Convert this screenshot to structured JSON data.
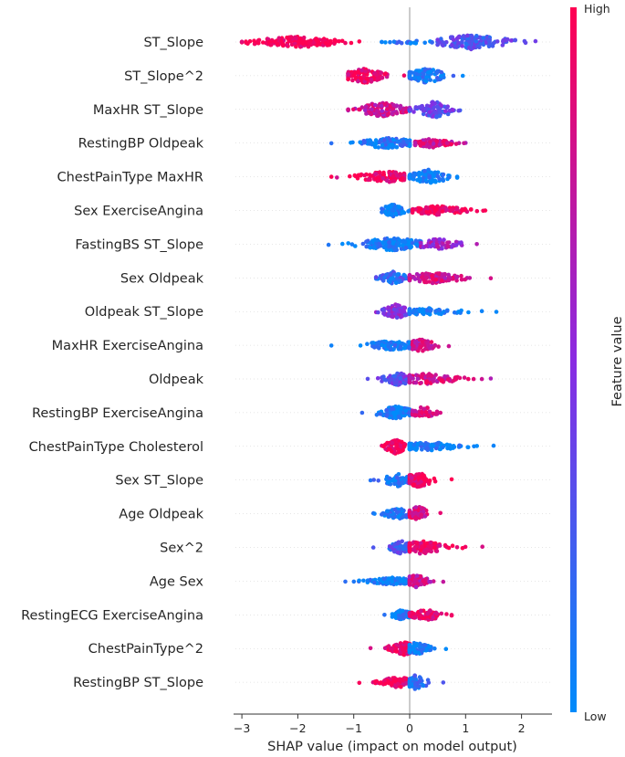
{
  "chart_data": {
    "type": "beeswarm",
    "title": "",
    "xlabel": "SHAP value (impact on model output)",
    "xlim": [
      -3.2,
      2.5
    ],
    "xticks": [
      -3,
      -2,
      -1,
      0,
      1,
      2
    ],
    "colorbar": {
      "title": "Feature value",
      "high_label": "High",
      "low_label": "Low",
      "high_color": "#ff0052",
      "mid_color": "#8a2be2",
      "low_color": "#008bfb"
    },
    "features": [
      {
        "name": "ST_Slope",
        "clusters": [
          {
            "min": -3.0,
            "max": -0.9,
            "center": -2.0,
            "spread": 0.45,
            "n": 150,
            "color": 1.0,
            "width": 6
          },
          {
            "min": -0.5,
            "max": 0.4,
            "center": 0.0,
            "spread": 0.25,
            "n": 25,
            "color": 0.1,
            "width": 2
          },
          {
            "min": 0.5,
            "max": 2.25,
            "center": 1.1,
            "spread": 0.35,
            "n": 140,
            "color": 0.3,
            "width": 8
          }
        ]
      },
      {
        "name": "ST_Slope^2",
        "clusters": [
          {
            "min": -1.1,
            "max": -0.1,
            "center": -0.8,
            "spread": 0.25,
            "n": 100,
            "color": 0.95,
            "width": 8
          },
          {
            "min": 0.0,
            "max": 0.95,
            "center": 0.3,
            "spread": 0.2,
            "n": 90,
            "color": 0.1,
            "width": 8
          }
        ]
      },
      {
        "name": "MaxHR ST_Slope",
        "clusters": [
          {
            "min": -1.1,
            "max": 0.0,
            "center": -0.5,
            "spread": 0.3,
            "n": 110,
            "color": 0.75,
            "width": 8
          },
          {
            "min": 0.0,
            "max": 0.9,
            "center": 0.45,
            "spread": 0.2,
            "n": 90,
            "color": 0.35,
            "width": 9
          }
        ]
      },
      {
        "name": "RestingBP Oldpeak",
        "clusters": [
          {
            "min": -1.4,
            "max": 0.0,
            "center": -0.4,
            "spread": 0.25,
            "n": 110,
            "color": 0.1,
            "width": 6
          },
          {
            "min": 0.1,
            "max": 1.0,
            "center": 0.4,
            "spread": 0.25,
            "n": 90,
            "color": 0.8,
            "width": 5
          }
        ]
      },
      {
        "name": "ChestPainType MaxHR",
        "clusters": [
          {
            "min": -1.4,
            "max": -0.1,
            "center": -0.4,
            "spread": 0.3,
            "n": 110,
            "color": 0.95,
            "width": 6
          },
          {
            "min": 0.0,
            "max": 0.85,
            "center": 0.35,
            "spread": 0.2,
            "n": 90,
            "color": 0.05,
            "width": 8
          }
        ]
      },
      {
        "name": "Sex ExerciseAngina",
        "clusters": [
          {
            "min": -0.5,
            "max": 0.0,
            "center": -0.3,
            "spread": 0.1,
            "n": 70,
            "color": 0.05,
            "width": 7
          },
          {
            "min": 0.05,
            "max": 1.35,
            "center": 0.5,
            "spread": 0.3,
            "n": 110,
            "color": 0.95,
            "width": 5
          }
        ]
      },
      {
        "name": "FastingBS ST_Slope",
        "clusters": [
          {
            "min": -1.45,
            "max": 0.2,
            "center": -0.3,
            "spread": 0.3,
            "n": 150,
            "color": 0.05,
            "width": 7
          },
          {
            "min": 0.2,
            "max": 1.2,
            "center": 0.5,
            "spread": 0.2,
            "n": 60,
            "color": 0.6,
            "width": 6
          }
        ]
      },
      {
        "name": "Sex Oldpeak",
        "clusters": [
          {
            "min": -0.6,
            "max": 0.0,
            "center": -0.3,
            "spread": 0.15,
            "n": 80,
            "color": 0.2,
            "width": 7
          },
          {
            "min": 0.0,
            "max": 1.45,
            "center": 0.4,
            "spread": 0.3,
            "n": 110,
            "color": 0.8,
            "width": 6
          }
        ]
      },
      {
        "name": "Oldpeak ST_Slope",
        "clusters": [
          {
            "min": -0.6,
            "max": 0.0,
            "center": -0.25,
            "spread": 0.12,
            "n": 80,
            "color": 0.5,
            "width": 8
          },
          {
            "min": 0.0,
            "max": 1.55,
            "center": 0.3,
            "spread": 0.35,
            "n": 90,
            "color": 0.05,
            "width": 4
          }
        ]
      },
      {
        "name": "MaxHR ExerciseAngina",
        "clusters": [
          {
            "min": -1.4,
            "max": 0.0,
            "center": -0.3,
            "spread": 0.25,
            "n": 100,
            "color": 0.05,
            "width": 5
          },
          {
            "min": 0.05,
            "max": 0.7,
            "center": 0.2,
            "spread": 0.12,
            "n": 60,
            "color": 0.75,
            "width": 7
          }
        ]
      },
      {
        "name": "Oldpeak",
        "clusters": [
          {
            "min": -0.75,
            "max": 0.0,
            "center": -0.2,
            "spread": 0.15,
            "n": 90,
            "color": 0.35,
            "width": 7
          },
          {
            "min": 0.0,
            "max": 1.45,
            "center": 0.3,
            "spread": 0.3,
            "n": 100,
            "color": 0.8,
            "width": 6
          }
        ]
      },
      {
        "name": "RestingBP ExerciseAngina",
        "clusters": [
          {
            "min": -0.85,
            "max": 0.0,
            "center": -0.25,
            "spread": 0.15,
            "n": 110,
            "color": 0.05,
            "width": 7
          },
          {
            "min": 0.05,
            "max": 0.55,
            "center": 0.25,
            "spread": 0.1,
            "n": 60,
            "color": 0.85,
            "width": 7
          }
        ]
      },
      {
        "name": "ChestPainType Cholesterol",
        "clusters": [
          {
            "min": -0.5,
            "max": 0.0,
            "center": -0.25,
            "spread": 0.1,
            "n": 70,
            "color": 0.95,
            "width": 8
          },
          {
            "min": 0.0,
            "max": 1.5,
            "center": 0.3,
            "spread": 0.35,
            "n": 110,
            "color": 0.05,
            "width": 5
          }
        ]
      },
      {
        "name": "Sex ST_Slope",
        "clusters": [
          {
            "min": -0.7,
            "max": 0.0,
            "center": -0.2,
            "spread": 0.15,
            "n": 80,
            "color": 0.1,
            "width": 7
          },
          {
            "min": 0.0,
            "max": 0.75,
            "center": 0.15,
            "spread": 0.12,
            "n": 80,
            "color": 0.95,
            "width": 8
          }
        ]
      },
      {
        "name": "Age Oldpeak",
        "clusters": [
          {
            "min": -0.65,
            "max": 0.0,
            "center": -0.2,
            "spread": 0.15,
            "n": 80,
            "color": 0.1,
            "width": 6
          },
          {
            "min": 0.0,
            "max": 0.55,
            "center": 0.15,
            "spread": 0.1,
            "n": 70,
            "color": 0.85,
            "width": 8
          }
        ]
      },
      {
        "name": "Sex^2",
        "clusters": [
          {
            "min": -0.65,
            "max": 0.0,
            "center": -0.15,
            "spread": 0.12,
            "n": 80,
            "color": 0.25,
            "width": 7
          },
          {
            "min": 0.0,
            "max": 1.3,
            "center": 0.2,
            "spread": 0.25,
            "n": 110,
            "color": 0.95,
            "width": 7
          }
        ]
      },
      {
        "name": "Age Sex",
        "clusters": [
          {
            "min": -1.15,
            "max": 0.0,
            "center": -0.3,
            "spread": 0.25,
            "n": 100,
            "color": 0.05,
            "width": 4
          },
          {
            "min": 0.0,
            "max": 0.6,
            "center": 0.1,
            "spread": 0.12,
            "n": 70,
            "color": 0.75,
            "width": 7
          }
        ]
      },
      {
        "name": "RestingECG ExerciseAngina",
        "clusters": [
          {
            "min": -0.45,
            "max": 0.0,
            "center": -0.15,
            "spread": 0.1,
            "n": 60,
            "color": 0.05,
            "width": 6
          },
          {
            "min": 0.0,
            "max": 0.75,
            "center": 0.3,
            "spread": 0.15,
            "n": 80,
            "color": 0.9,
            "width": 6
          }
        ]
      },
      {
        "name": "ChestPainType^2",
        "clusters": [
          {
            "min": -0.7,
            "max": 0.0,
            "center": -0.1,
            "spread": 0.15,
            "n": 90,
            "color": 0.95,
            "width": 7
          },
          {
            "min": 0.0,
            "max": 0.65,
            "center": 0.1,
            "spread": 0.15,
            "n": 80,
            "color": 0.05,
            "width": 7
          }
        ]
      },
      {
        "name": "RestingBP ST_Slope",
        "clusters": [
          {
            "min": -0.9,
            "max": 0.0,
            "center": -0.2,
            "spread": 0.2,
            "n": 90,
            "color": 0.95,
            "width": 6
          },
          {
            "min": 0.0,
            "max": 0.6,
            "center": 0.1,
            "spread": 0.1,
            "n": 70,
            "color": 0.15,
            "width": 8
          }
        ]
      }
    ]
  }
}
